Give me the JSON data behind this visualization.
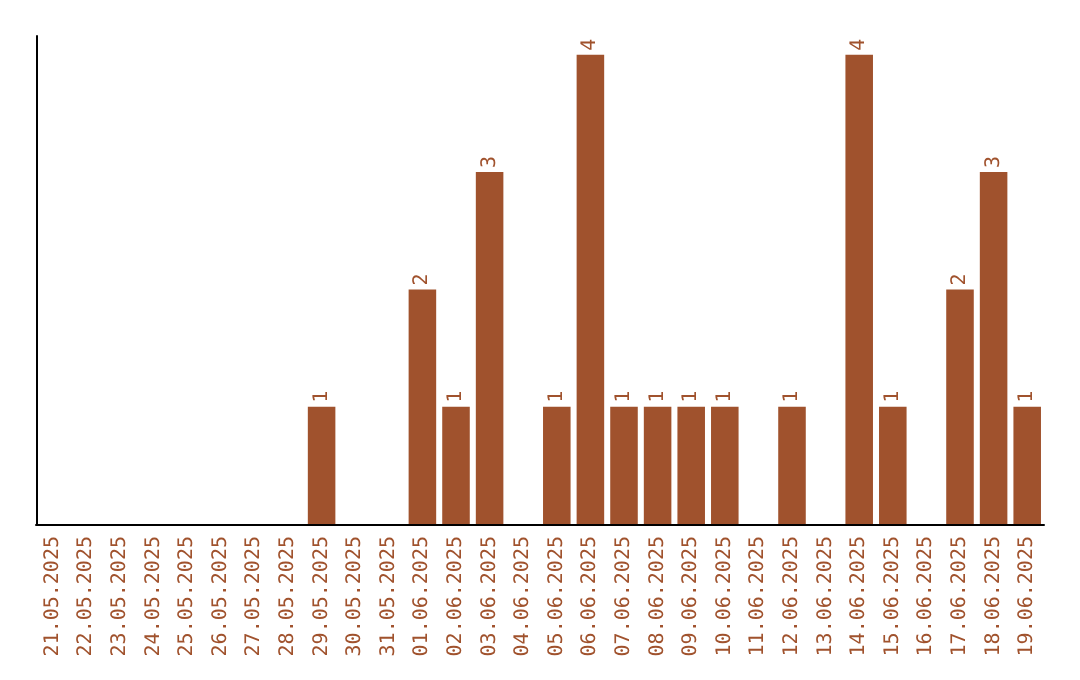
{
  "chart_data": {
    "type": "bar",
    "categories": [
      "21.05.2025",
      "22.05.2025",
      "23.05.2025",
      "24.05.2025",
      "25.05.2025",
      "26.05.2025",
      "27.05.2025",
      "28.05.2025",
      "29.05.2025",
      "30.05.2025",
      "31.05.2025",
      "01.06.2025",
      "02.06.2025",
      "03.06.2025",
      "04.06.2025",
      "05.06.2025",
      "06.06.2025",
      "07.06.2025",
      "08.06.2025",
      "09.06.2025",
      "10.06.2025",
      "11.06.2025",
      "12.06.2025",
      "13.06.2025",
      "14.06.2025",
      "15.06.2025",
      "16.06.2025",
      "17.06.2025",
      "18.06.2025",
      "19.06.2025"
    ],
    "values": [
      0,
      0,
      0,
      0,
      0,
      0,
      0,
      0,
      1,
      0,
      0,
      2,
      1,
      3,
      0,
      1,
      4,
      1,
      1,
      1,
      1,
      0,
      1,
      0,
      4,
      1,
      0,
      2,
      3,
      1
    ],
    "value_labels": [
      null,
      null,
      null,
      null,
      null,
      null,
      null,
      null,
      "1",
      null,
      null,
      "2",
      "1",
      "3",
      null,
      "1",
      "4",
      "1",
      "1",
      "1",
      "1",
      null,
      "1",
      null,
      "4",
      "1",
      null,
      "2",
      "3",
      "1"
    ],
    "color": "#a0522d"
  }
}
